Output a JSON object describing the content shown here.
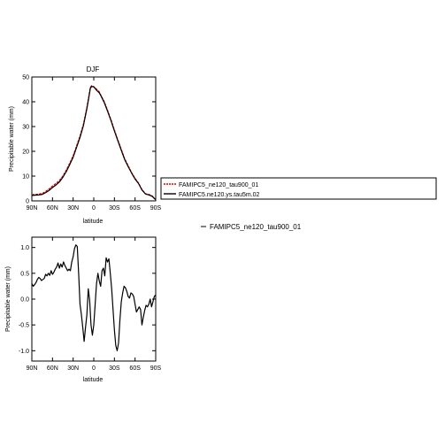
{
  "panel_top": {
    "title": "DJF",
    "xlabel": "latitude",
    "ylabel": "Precipitable water (mm)"
  },
  "panel_bottom": {
    "xlabel": "latitude",
    "ylabel": "Precipitable water (mm)",
    "side_label": "FAMIPC5_ne120_tau900_01"
  },
  "legend": {
    "entries": [
      "FAMIPC5_ne120_tau900_01",
      "FAMIPC5.ne120.ys.tau5m.02"
    ]
  },
  "chart_data": [
    {
      "type": "line",
      "title": "DJF",
      "xlabel": "latitude",
      "ylabel": "Precipitable water (mm)",
      "xlim": [
        90,
        -90
      ],
      "ylim": [
        0,
        50
      ],
      "x_ticks": [
        90,
        60,
        30,
        0,
        -30,
        -60,
        -90
      ],
      "x_tick_labels": [
        "90N",
        "60N",
        "30N",
        "0",
        "30S",
        "60S",
        "90S"
      ],
      "y_ticks": [
        0,
        10,
        20,
        30,
        40,
        50
      ],
      "y_tick_labels": [
        "0",
        "10",
        "20",
        "30",
        "40",
        "50"
      ],
      "x": [
        90,
        80,
        75,
        70,
        65,
        60,
        55,
        50,
        45,
        40,
        35,
        30,
        25,
        20,
        15,
        10,
        7,
        5,
        3,
        0,
        -3,
        -5,
        -8,
        -10,
        -15,
        -20,
        -25,
        -30,
        -35,
        -40,
        -45,
        -50,
        -55,
        -60,
        -65,
        -70,
        -75,
        -80,
        -85,
        -90
      ],
      "series": [
        {
          "name": "FAMIPC5_ne120_tau900_01",
          "color": "#e00000",
          "values": [
            2.5,
            2.7,
            3.0,
            3.8,
            4.8,
            6.0,
            7.0,
            8.2,
            10.0,
            12.4,
            15.2,
            18.2,
            22.2,
            26.2,
            31.0,
            37.8,
            42.6,
            45.9,
            46.5,
            46.1,
            45.4,
            44.8,
            44.0,
            42.8,
            40.2,
            36.6,
            32.8,
            28.6,
            24.6,
            20.8,
            17.0,
            14.2,
            11.4,
            9.1,
            7.2,
            4.6,
            2.9,
            2.6,
            2.0,
            0.5
          ]
        },
        {
          "name": "FAMIPC5.ne120.ys.tau5m.02",
          "color": "#000000",
          "values": [
            2.2,
            2.4,
            2.6,
            3.3,
            4.2,
            5.4,
            6.4,
            7.6,
            9.5,
            11.8,
            14.6,
            17.6,
            21.6,
            25.6,
            30.4,
            37.2,
            42.0,
            45.4,
            46.2,
            46.0,
            45.0,
            44.4,
            43.6,
            42.6,
            39.8,
            36.2,
            32.4,
            28.2,
            24.2,
            20.4,
            16.6,
            13.8,
            11.2,
            8.8,
            7.0,
            4.4,
            2.8,
            2.4,
            1.8,
            0.4
          ]
        }
      ]
    },
    {
      "type": "line",
      "xlabel": "latitude",
      "ylabel": "Precipitable water (mm)",
      "xlim": [
        90,
        -90
      ],
      "ylim": [
        -1.2,
        1.2
      ],
      "x_ticks": [
        90,
        60,
        30,
        0,
        -30,
        -60,
        -90
      ],
      "x_tick_labels": [
        "90N",
        "60N",
        "30N",
        "0",
        "30S",
        "60S",
        "90S"
      ],
      "y_ticks": [
        -1.0,
        -0.5,
        0.0,
        0.5,
        1.0
      ],
      "y_tick_labels": [
        "-1.0",
        "-0.5",
        "0.0",
        "0.5",
        "1.0"
      ],
      "x": [
        90,
        88,
        86,
        84,
        82,
        80,
        78,
        76,
        74,
        72,
        70,
        68,
        66,
        64,
        62,
        60,
        58,
        56,
        54,
        52,
        50,
        48,
        46,
        44,
        42,
        40,
        38,
        36,
        34,
        32,
        30,
        28,
        26,
        24,
        22,
        20,
        18,
        16,
        14,
        12,
        10,
        8,
        6,
        4,
        2,
        0,
        -2,
        -4,
        -6,
        -8,
        -10,
        -12,
        -14,
        -16,
        -18,
        -20,
        -22,
        -24,
        -26,
        -28,
        -30,
        -32,
        -34,
        -36,
        -38,
        -40,
        -42,
        -44,
        -46,
        -48,
        -50,
        -52,
        -54,
        -56,
        -58,
        -60,
        -62,
        -64,
        -66,
        -68,
        -70,
        -72,
        -74,
        -76,
        -78,
        -80,
        -82,
        -84,
        -86,
        -88,
        -90
      ],
      "series": [
        {
          "name": "FAMIPC5_ne120_tau900_01",
          "color": "#000000",
          "values": [
            0.3,
            0.25,
            0.28,
            0.32,
            0.38,
            0.42,
            0.4,
            0.36,
            0.38,
            0.4,
            0.48,
            0.45,
            0.5,
            0.46,
            0.55,
            0.48,
            0.52,
            0.58,
            0.62,
            0.7,
            0.6,
            0.68,
            0.62,
            0.72,
            0.65,
            0.6,
            0.55,
            0.58,
            0.55,
            0.72,
            0.82,
            0.98,
            1.05,
            1.02,
            0.5,
            -0.1,
            -0.3,
            -0.55,
            -0.82,
            -0.55,
            -0.3,
            0.2,
            -0.02,
            -0.5,
            -0.7,
            -0.5,
            -0.1,
            0.3,
            0.5,
            0.35,
            0.25,
            0.55,
            0.6,
            0.45,
            0.8,
            0.72,
            0.78,
            0.5,
            0.2,
            -0.2,
            -0.6,
            -0.9,
            -1.0,
            -0.85,
            -0.4,
            -0.05,
            0.12,
            0.25,
            0.22,
            0.15,
            0.05,
            0.02,
            0.12,
            0.1,
            0.05,
            -0.1,
            -0.25,
            -0.2,
            -0.15,
            -0.2,
            -0.5,
            -0.35,
            -0.22,
            -0.12,
            -0.15,
            -0.1,
            0.0,
            -0.15,
            -0.05,
            0.05,
            0.08
          ]
        }
      ]
    }
  ]
}
